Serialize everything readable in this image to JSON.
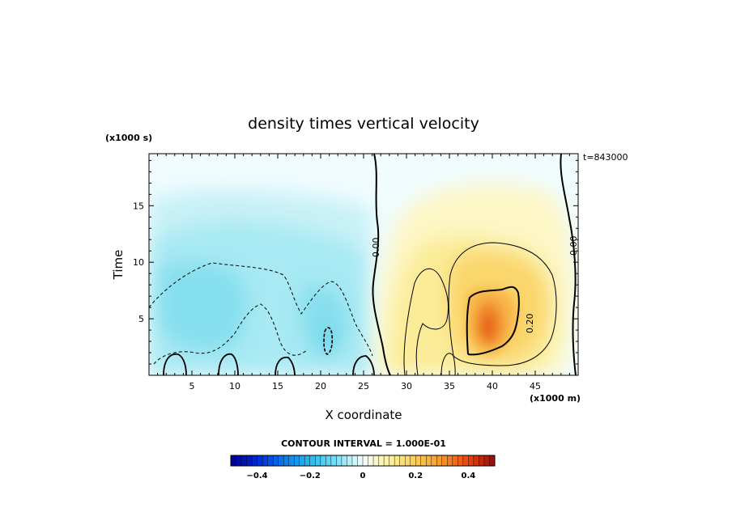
{
  "chart_data": {
    "type": "heatmap",
    "title": "density times vertical velocity",
    "xlabel": "X coordinate",
    "ylabel": "Time",
    "x_unit": "(x1000 m)",
    "y_unit": "(x1000 s)",
    "time_stamp": "t=843000",
    "xlim": [
      0,
      50
    ],
    "ylim": [
      0,
      19.6
    ],
    "x_ticks": [
      5,
      10,
      15,
      20,
      25,
      30,
      35,
      40,
      45
    ],
    "y_ticks": [
      5,
      10,
      15
    ],
    "contour_interval_text": "CONTOUR INTERVAL = 1.000E-01",
    "contour_labels": [
      "0.00",
      "0.00",
      "0.20"
    ],
    "colorbar": {
      "range": [
        -0.5,
        0.5
      ],
      "tick_values": [
        -0.4,
        -0.2,
        0,
        0.2,
        0.4
      ],
      "tick_labels": [
        "−0.4",
        "−0.2",
        "0",
        "0.2",
        "0.4"
      ]
    },
    "features": [
      {
        "kind": "negative_region",
        "x_range": [
          0,
          26
        ],
        "t_range": [
          0,
          17
        ],
        "min_value": -0.2
      },
      {
        "kind": "positive_region",
        "x_range": [
          26,
          50
        ],
        "t_range": [
          0,
          18
        ],
        "max_value": 0.45,
        "peak_x": 40,
        "peak_t": 4.8
      }
    ]
  }
}
